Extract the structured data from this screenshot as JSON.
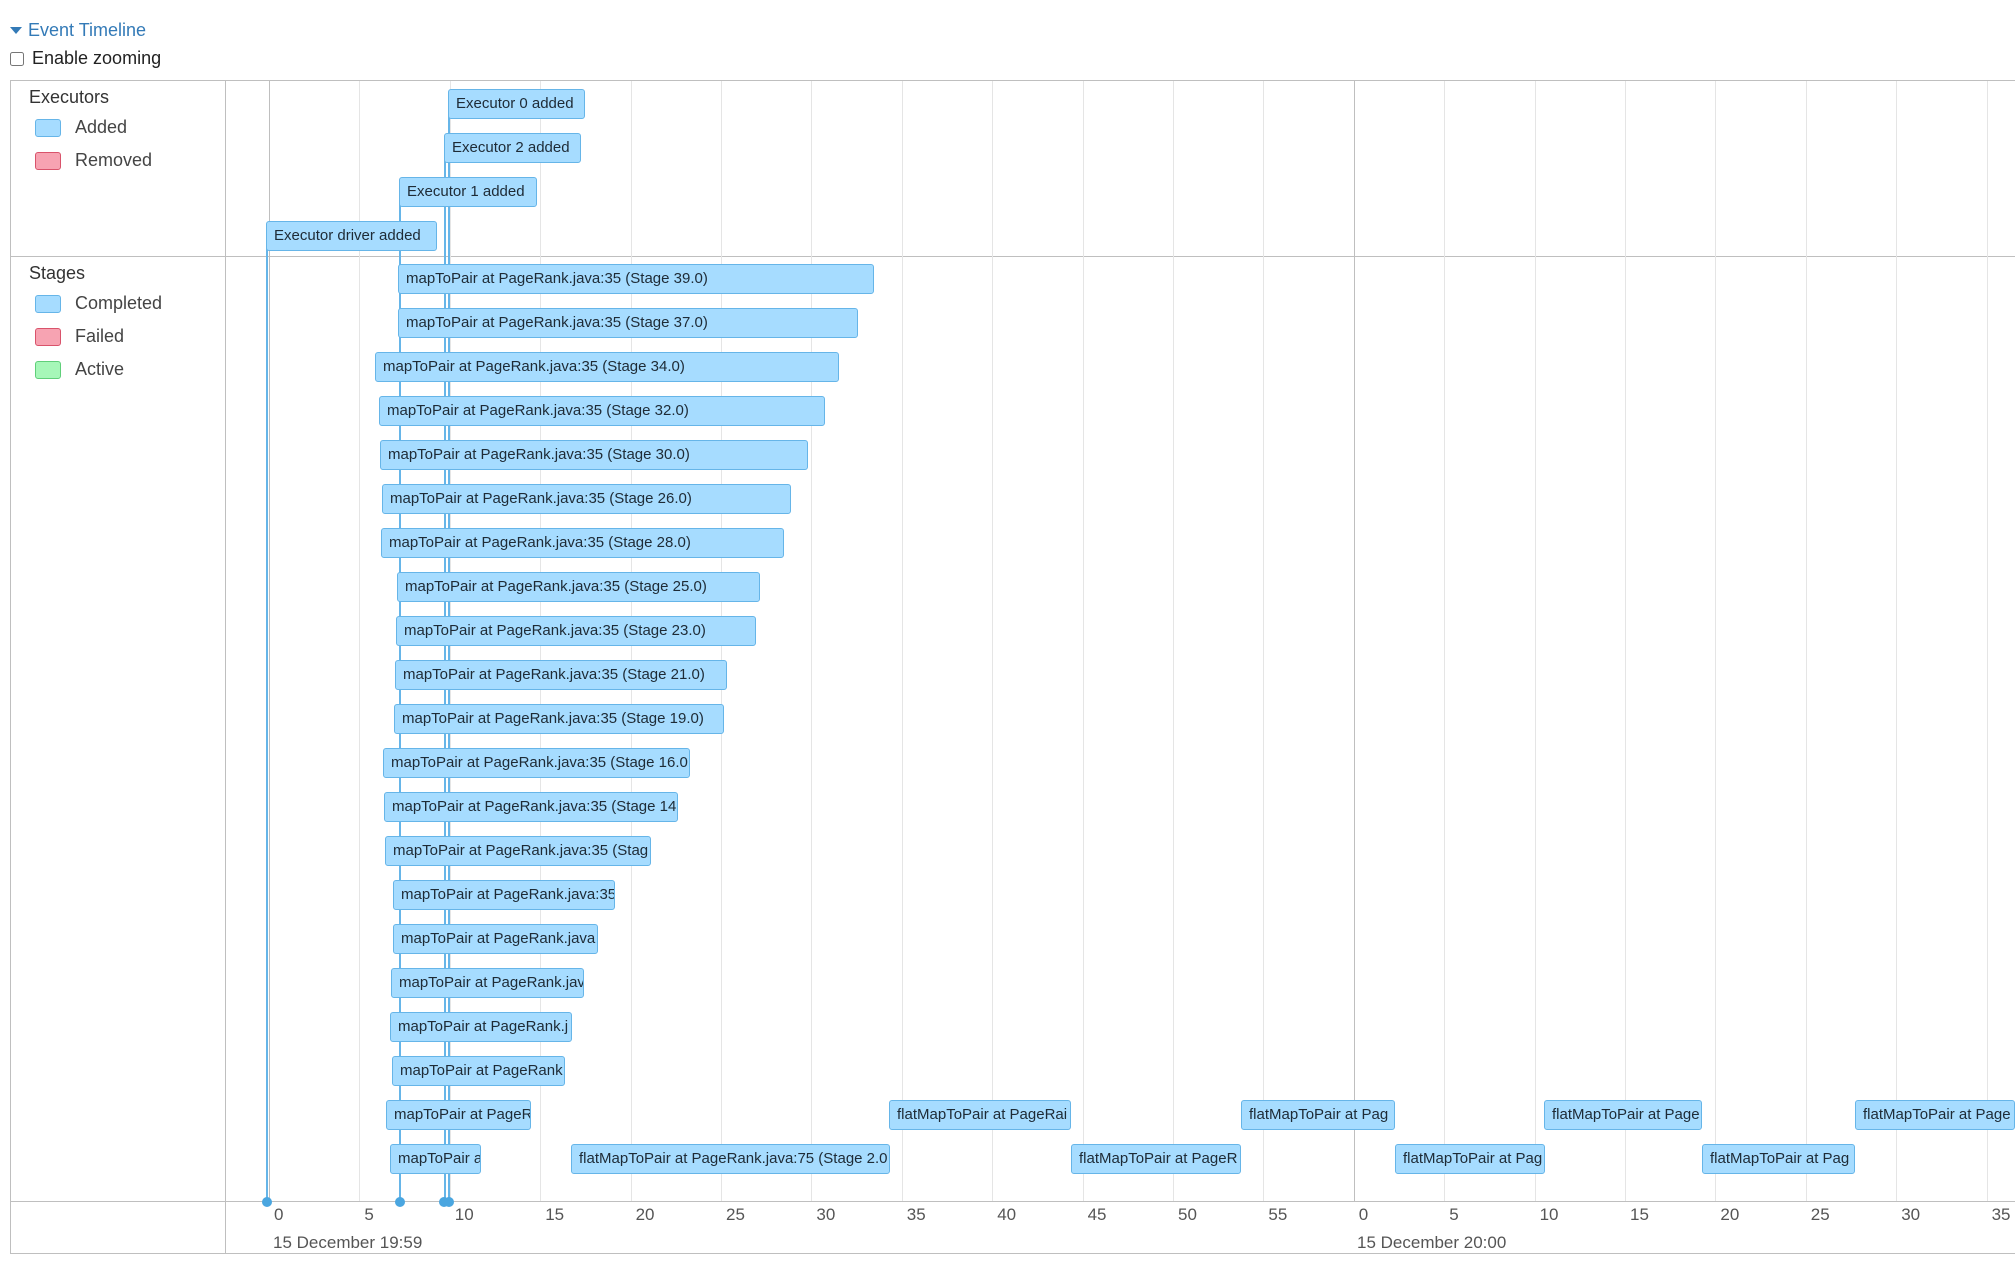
{
  "header": {
    "title": "Event Timeline",
    "zoom_label": "Enable zooming"
  },
  "executors": {
    "label": "Executors",
    "legend": [
      {
        "label": "Added",
        "color": "#a6dcff"
      },
      {
        "label": "Removed",
        "color": "#f7a3b2"
      }
    ],
    "items": [
      "Executor 0 added",
      "Executor 2 added",
      "Executor 1 added",
      "Executor driver added"
    ]
  },
  "stages": {
    "label": "Stages",
    "legend": [
      {
        "label": "Completed",
        "color": "#a6dcff"
      },
      {
        "label": "Failed",
        "color": "#f7a3b2"
      },
      {
        "label": "Active",
        "color": "#a6f7b8"
      }
    ],
    "items": [
      "mapToPair at PageRank.java:35 (Stage 39.0)",
      "mapToPair at PageRank.java:35 (Stage 37.0)",
      "mapToPair at PageRank.java:35 (Stage 34.0)",
      "mapToPair at PageRank.java:35 (Stage 32.0)",
      "mapToPair at PageRank.java:35 (Stage 30.0)",
      "mapToPair at PageRank.java:35 (Stage 26.0)",
      "mapToPair at PageRank.java:35 (Stage 28.0)",
      "mapToPair at PageRank.java:35 (Stage 25.0)",
      "mapToPair at PageRank.java:35 (Stage 23.0)",
      "mapToPair at PageRank.java:35 (Stage 21.0)",
      "mapToPair at PageRank.java:35 (Stage 19.0)",
      "mapToPair at PageRank.java:35 (Stage 16.0",
      "mapToPair at PageRank.java:35 (Stage 14",
      "mapToPair at PageRank.java:35 (Stag",
      "mapToPair at PageRank.java:35",
      "mapToPair at PageRank.java",
      "mapToPair at PageRank.jav",
      "mapToPair at PageRank.j",
      "mapToPair at PageRank",
      "mapToPair at PageR",
      "flatMapToPair at PageRai",
      "flatMapToPair at Pag",
      "flatMapToPair at Page",
      "flatMapToPair at Page",
      "mapToPair a",
      "flatMapToPair at PageRank.java:75 (Stage 2.0",
      "flatMapToPair at PageR",
      "flatMapToPair at Pag",
      "flatMapToPair at Pag"
    ]
  },
  "axis": {
    "ticks_a": [
      "0",
      "5",
      "10",
      "15",
      "20",
      "25",
      "30",
      "35",
      "40",
      "45",
      "50",
      "55"
    ],
    "ticks_b": [
      "0",
      "5",
      "10",
      "15",
      "20",
      "25",
      "30",
      "35"
    ],
    "date_a": "15 December 19:59",
    "date_b": "15 December 20:00"
  }
}
